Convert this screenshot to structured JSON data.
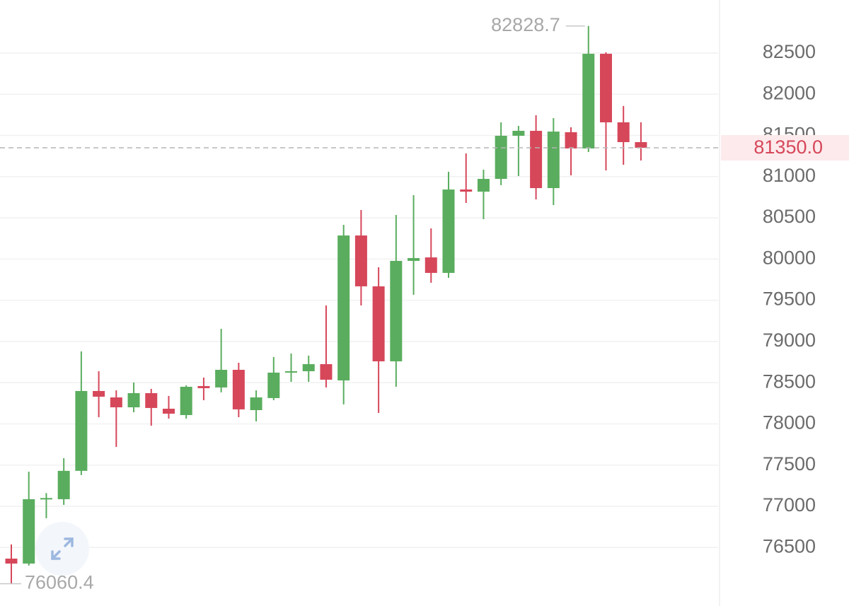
{
  "chart_data": {
    "type": "candlestick",
    "up_color": "#5aad5e",
    "down_color": "#d6475a",
    "grid": true,
    "ylim": [
      75790,
      83143.5
    ],
    "yticks": [
      76500,
      77000,
      77500,
      78000,
      78500,
      79000,
      79500,
      80000,
      80500,
      81000,
      81500,
      82000,
      82500
    ],
    "open": [
      76365,
      76305,
      77086,
      77086,
      77430,
      78399,
      78321,
      78201,
      78373,
      78184,
      78107,
      78459,
      78442,
      78656,
      78167,
      78313,
      78622,
      78639,
      78725,
      78527,
      80286,
      79669,
      78759,
      79978,
      80020,
      79832,
      80844,
      80818,
      80973,
      81496,
      81556,
      80861,
      81539,
      81342,
      82491,
      81659,
      81419
    ],
    "high": [
      76537,
      77420,
      77160,
      77583,
      78879,
      78639,
      78407,
      78502,
      78425,
      78339,
      78467,
      78562,
      79154,
      78742,
      78407,
      78811,
      78854,
      78828,
      79437,
      80415,
      80595,
      79900,
      80535,
      80775,
      80372,
      81059,
      81282,
      81084,
      81659,
      81616,
      81745,
      81711,
      81599,
      82828.7,
      82509,
      81857,
      81659
    ],
    "low": [
      76060.4,
      76280,
      76855,
      77017,
      77378,
      78081,
      77721,
      78141,
      77978,
      78064,
      78064,
      78287,
      78382,
      78081,
      78030,
      78287,
      78510,
      78510,
      78442,
      78236,
      79437,
      78133,
      78450,
      79566,
      79712,
      79772,
      80681,
      80484,
      80896,
      81007,
      80724,
      80655,
      81016,
      81299,
      81076,
      81144,
      81196
    ],
    "close": [
      76305,
      77086,
      77100,
      77430,
      78399,
      78330,
      78201,
      78373,
      78193,
      78124,
      78450,
      78433,
      78656,
      78176,
      78321,
      78622,
      78639,
      78725,
      78536,
      80286,
      79669,
      78759,
      79978,
      80012,
      79832,
      80844,
      80818,
      80973,
      81496,
      81556,
      80861,
      81547,
      81342,
      82491,
      81659,
      81419,
      81350
    ],
    "high_label": 82828.7,
    "low_label": 76060.4,
    "last_price": {
      "value": 81350,
      "label": "81350.0"
    }
  }
}
